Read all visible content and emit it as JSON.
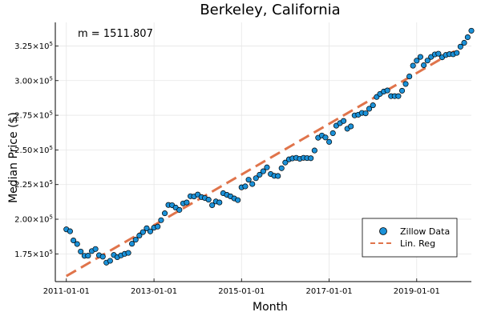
{
  "chart_data": {
    "type": "scatter",
    "title": "Berkeley, California",
    "xlabel": "Month",
    "ylabel": "Median Price ($)",
    "annotation": "m = 1511.807",
    "legend_position": "bottom-right",
    "grid": true,
    "colors": {
      "scatter": "#1b91d8",
      "line": "#e0744b"
    },
    "xlim": [
      "2010-10-01",
      "2020-04-01"
    ],
    "ylim": [
      155000,
      342000
    ],
    "x_ticks": [
      "2011-01-01",
      "2013-01-01",
      "2015-01-01",
      "2017-01-01",
      "2019-01-01"
    ],
    "y_ticks": [
      {
        "value": 175000,
        "mantissa": "1.75",
        "exponent": "5"
      },
      {
        "value": 200000,
        "mantissa": "2.00",
        "exponent": "5"
      },
      {
        "value": 225000,
        "mantissa": "2.25",
        "exponent": "5"
      },
      {
        "value": 250000,
        "mantissa": "2.50",
        "exponent": "5"
      },
      {
        "value": 275000,
        "mantissa": "2.75",
        "exponent": "5"
      },
      {
        "value": 300000,
        "mantissa": "3.00",
        "exponent": "5"
      },
      {
        "value": 325000,
        "mantissa": "3.25",
        "exponent": "5"
      }
    ],
    "tick_base": "×10",
    "series": [
      {
        "name": "Zillow Data",
        "kind": "scatter",
        "start": "2011-01",
        "step": "month",
        "values": [
          192700,
          191300,
          184700,
          182100,
          176700,
          173600,
          173700,
          177000,
          178500,
          174000,
          173000,
          168700,
          170000,
          174200,
          172600,
          173900,
          175000,
          175700,
          182300,
          185200,
          188200,
          190700,
          193500,
          191200,
          193900,
          194700,
          199300,
          204300,
          210300,
          210100,
          208400,
          206700,
          211400,
          212100,
          216600,
          216400,
          217800,
          216000,
          215300,
          214100,
          210100,
          212800,
          212100,
          218800,
          217600,
          216500,
          215000,
          213800,
          223000,
          223700,
          228500,
          225400,
          229600,
          232100,
          234600,
          237400,
          232600,
          231300,
          231200,
          236800,
          240900,
          243200,
          243900,
          244300,
          243600,
          244300,
          244100,
          244000,
          249600,
          258800,
          260400,
          259000,
          255800,
          262100,
          267500,
          269300,
          270900,
          265300,
          267000,
          274900,
          275400,
          276700,
          276400,
          279700,
          282200,
          288200,
          290400,
          292100,
          292900,
          288800,
          288800,
          288800,
          292700,
          297600,
          303000,
          310800,
          314400,
          317100,
          311100,
          314500,
          317100,
          318900,
          319400,
          316800,
          318500,
          319100,
          319000,
          320000,
          324500,
          327300,
          331300,
          336000
        ]
      },
      {
        "name": "Lin. Reg",
        "kind": "line",
        "x": [
          "2011-01-01",
          "2019-12-01"
        ],
        "values": [
          159000,
          322200
        ]
      }
    ]
  }
}
